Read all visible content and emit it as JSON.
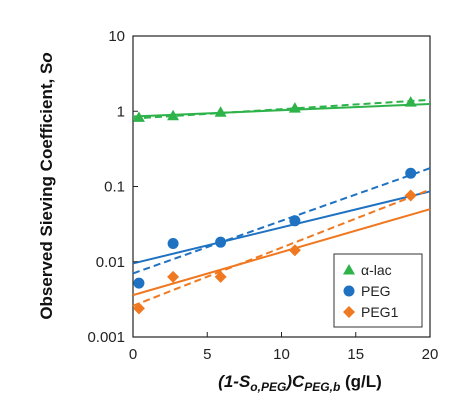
{
  "chart_data": {
    "type": "scatter",
    "xlabel": {
      "main": "(1-S",
      "sub1": "o,PEG",
      "mid": ")C",
      "sub2": "PEG,b",
      "tail": " (g/L)"
    },
    "ylabel": {
      "main": "Observed Sieving Coefficient, S",
      "sub": "o"
    },
    "x_ticks": [
      "0",
      "5",
      "10",
      "15",
      "20"
    ],
    "y_ticks": [
      "0.001",
      "0.01",
      "0.1",
      "1",
      "10"
    ],
    "xlim": [
      0,
      20
    ],
    "ylim": [
      0.001,
      10
    ],
    "y_scale": "log",
    "grid": false,
    "legend_position": "bottom-right",
    "series": [
      {
        "name": "α-lac",
        "color": "#2db34a",
        "marker": "triangle",
        "x": [
          0.4,
          2.7,
          5.9,
          10.9,
          18.7
        ],
        "y": [
          0.83,
          0.87,
          0.97,
          1.1,
          1.32
        ],
        "solid_fit": {
          "x": [
            0,
            20
          ],
          "y": [
            0.85,
            1.25
          ]
        },
        "dashed_fit": {
          "x": [
            0,
            20
          ],
          "y": [
            0.8,
            1.42
          ]
        }
      },
      {
        "name": "PEG",
        "color": "#1f72c2",
        "marker": "circle",
        "x": [
          0.4,
          2.7,
          5.9,
          10.9,
          18.7
        ],
        "y": [
          0.0052,
          0.0175,
          0.0182,
          0.035,
          0.15
        ],
        "solid_fit": {
          "x": [
            0,
            20
          ],
          "y": [
            0.0095,
            0.086
          ]
        },
        "dashed_fit": {
          "x": [
            0,
            20
          ],
          "y": [
            0.007,
            0.175
          ]
        }
      },
      {
        "name": "PEG1",
        "color": "#f07820",
        "marker": "diamond",
        "x": [
          0.4,
          2.7,
          5.9,
          10.9,
          18.7
        ],
        "y": [
          0.0024,
          0.0063,
          0.0063,
          0.0142,
          0.076
        ],
        "solid_fit": {
          "x": [
            0,
            20
          ],
          "y": [
            0.0036,
            0.05
          ]
        },
        "dashed_fit": {
          "x": [
            0,
            20
          ],
          "y": [
            0.0026,
            0.091
          ]
        }
      }
    ]
  }
}
